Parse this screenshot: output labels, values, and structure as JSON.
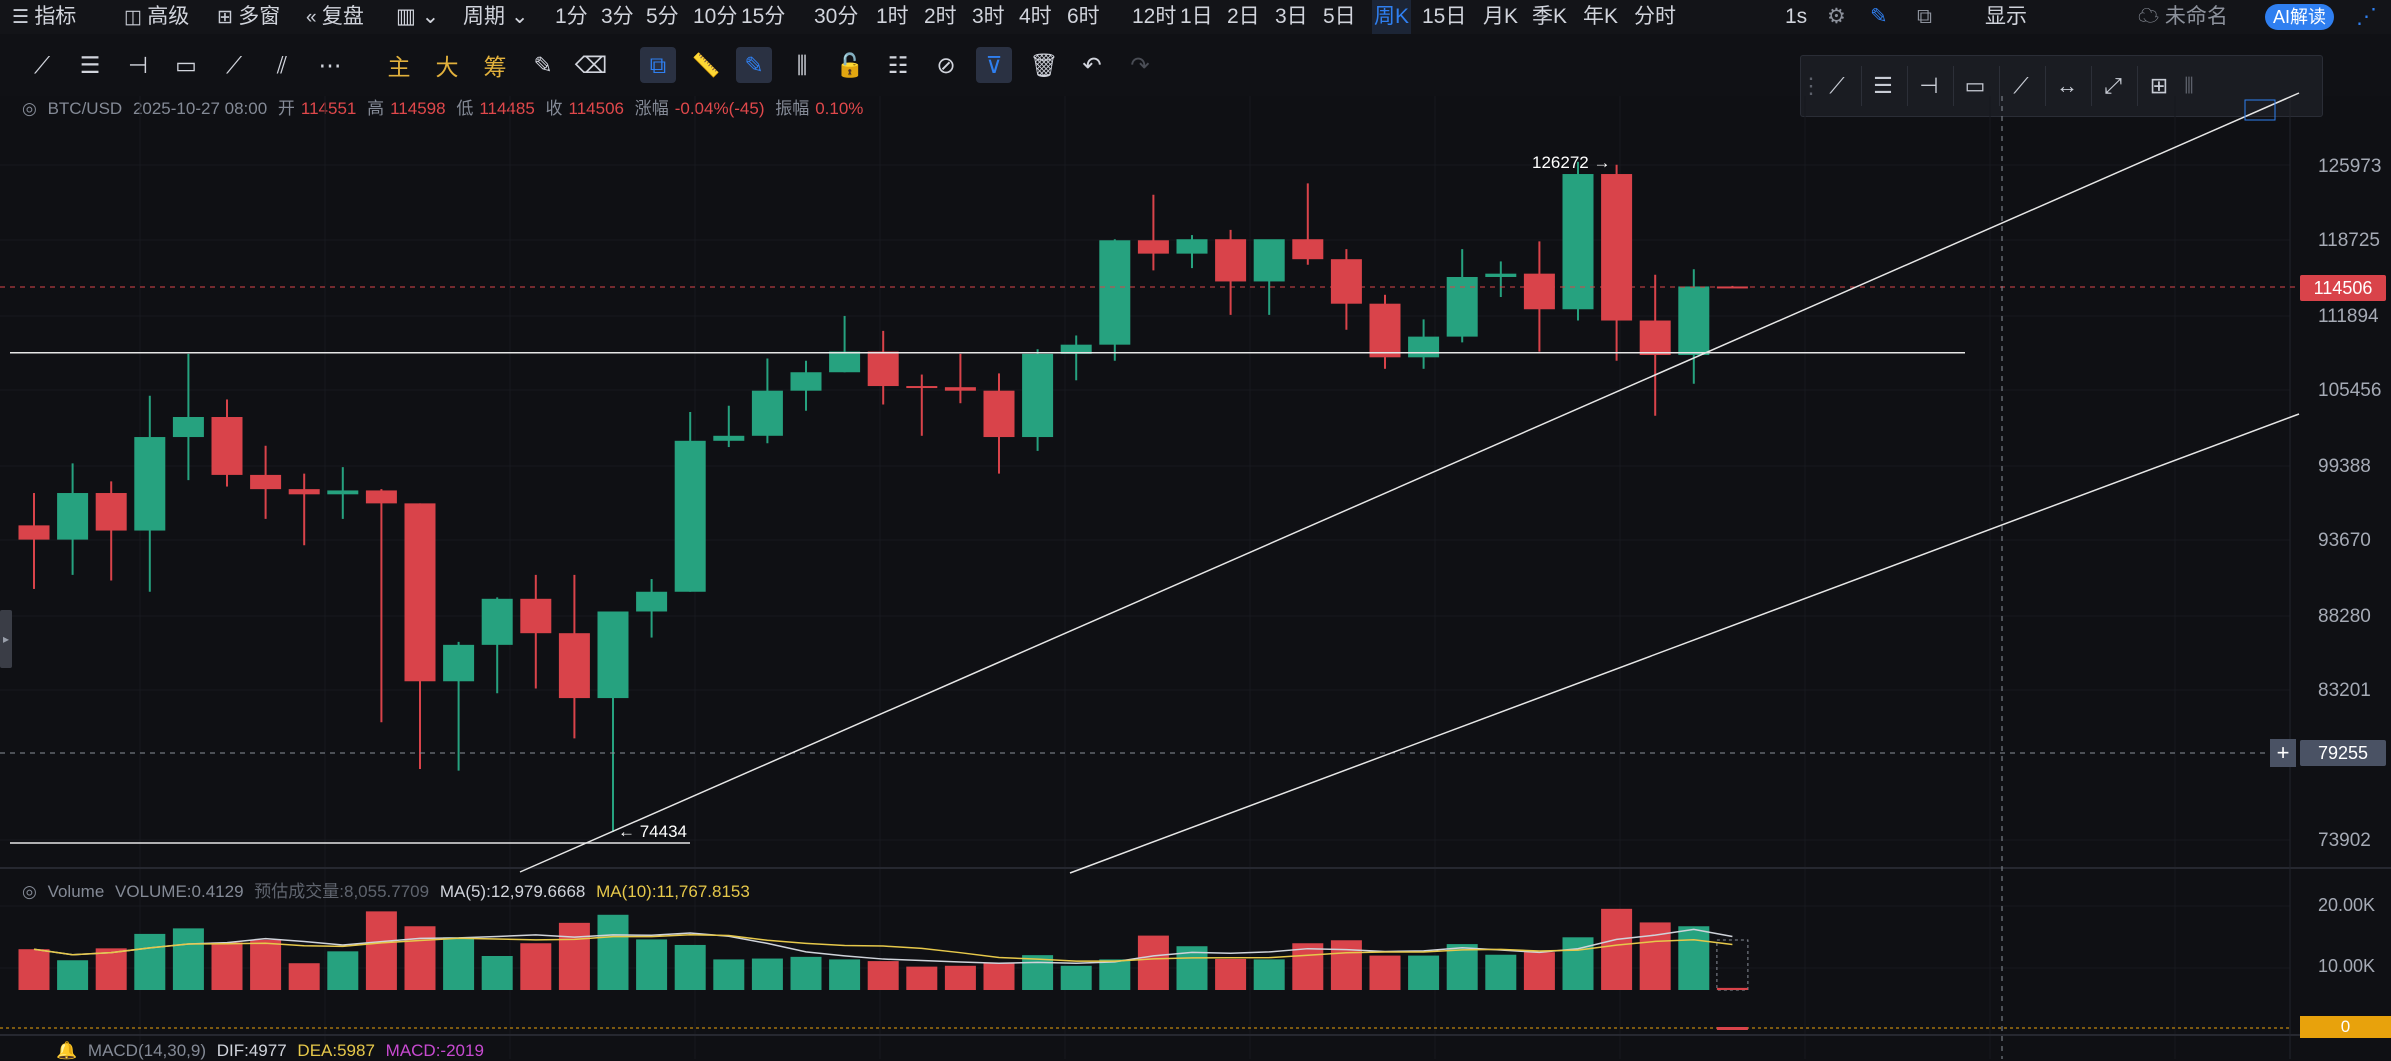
{
  "topbar": {
    "indicators_label": "指标",
    "advanced_label": "高级",
    "multiwindow_label": "多窗",
    "replay_label": "复盘",
    "period_label": "周期",
    "timeframes": [
      "1分",
      "3分",
      "5分",
      "10分",
      "15分",
      "30分",
      "1时",
      "2时",
      "3时",
      "4时",
      "6时",
      "12时",
      "1日",
      "2日",
      "3日",
      "5日",
      "周K",
      "15日",
      "月K",
      "季K",
      "年K",
      "分时"
    ],
    "selected_timeframe": "周K",
    "right_items": [
      "1s",
      "显示",
      "未命名",
      "AI解读"
    ]
  },
  "toolbar": {
    "text_tools": [
      "主",
      "大",
      "筹"
    ]
  },
  "legend": {
    "symbol": "BTC/USD",
    "date": "2025-10-27 08:00",
    "open_label": "开",
    "open": "114551",
    "high_label": "高",
    "high": "114598",
    "low_label": "低",
    "low": "114485",
    "close_label": "收",
    "close": "114506",
    "change_label": "涨幅",
    "change": "-0.04%(-45)",
    "amplitude_label": "振幅",
    "amplitude": "0.10%"
  },
  "volume_legend": {
    "name": "Volume",
    "volume": "VOLUME:0.4129",
    "estimate": "预估成交量:8,055.7709",
    "ma5": "MA(5):12,979.6668",
    "ma10": "MA(10):11,767.8153"
  },
  "macd_legend": {
    "name": "MACD(14,30,9)",
    "dif": "DIF:4977",
    "dea": "DEA:5987",
    "macd": "MACD:-2019"
  },
  "price_axis": {
    "labels": [
      "125973",
      "118725",
      "111894",
      "105456",
      "99388",
      "93670",
      "88280",
      "83201",
      "73902"
    ],
    "current_price": "114506",
    "crosshair_price": "79255"
  },
  "volume_axis": {
    "labels": [
      "20.00K",
      "10.00K"
    ],
    "macd_zero": "0"
  },
  "annotations": {
    "high_marker": "126272 →",
    "low_marker": "← 74434"
  },
  "colors": {
    "up": "#26a27f",
    "down": "#d9434a",
    "background": "#0f1014",
    "accent": "#2f7ff0",
    "ma5": "#cfd3da",
    "ma10": "#e6c84a",
    "current_tag": "#d9434a",
    "macd_tag": "#e8a20c"
  },
  "chart_data": {
    "type": "candlestick",
    "symbol": "BTC/USD",
    "interval": "weekly",
    "ohlc": [
      [
        94800,
        97300,
        90200,
        93700
      ],
      [
        93700,
        99600,
        91200,
        97300
      ],
      [
        97300,
        98200,
        90800,
        94400
      ],
      [
        94400,
        105000,
        90000,
        101700
      ],
      [
        101700,
        108600,
        98300,
        103300
      ],
      [
        103300,
        104700,
        97800,
        98700
      ],
      [
        98700,
        101000,
        95300,
        97600
      ],
      [
        97600,
        98800,
        93300,
        97200
      ],
      [
        97200,
        99300,
        95300,
        97500
      ],
      [
        97500,
        97600,
        81200,
        96500
      ],
      [
        96500,
        96500,
        78300,
        83800
      ],
      [
        83800,
        86500,
        78200,
        86300
      ],
      [
        86300,
        89600,
        83000,
        89500
      ],
      [
        89500,
        91200,
        83300,
        87100
      ],
      [
        87100,
        91200,
        80200,
        82700
      ],
      [
        82700,
        88600,
        74400,
        88600
      ],
      [
        88600,
        90900,
        86800,
        90000
      ],
      [
        90000,
        103700,
        90000,
        101400
      ],
      [
        101400,
        104200,
        100900,
        101800
      ],
      [
        101800,
        108200,
        101200,
        105400
      ],
      [
        105400,
        108000,
        103800,
        107000
      ],
      [
        107000,
        111900,
        107000,
        108800
      ],
      [
        108800,
        110600,
        104300,
        105800
      ],
      [
        105800,
        106800,
        101800,
        105700
      ],
      [
        105700,
        108600,
        104400,
        105400
      ],
      [
        105400,
        106900,
        98800,
        101700
      ],
      [
        101700,
        109000,
        100600,
        108600
      ],
      [
        108600,
        110200,
        106300,
        109400
      ],
      [
        109400,
        118800,
        108000,
        118700
      ],
      [
        118700,
        123100,
        116000,
        117500
      ],
      [
        117500,
        119200,
        116200,
        118800
      ],
      [
        118800,
        119700,
        112000,
        115000
      ],
      [
        115000,
        118700,
        112000,
        118800
      ],
      [
        118800,
        124200,
        116500,
        117000
      ],
      [
        117000,
        117900,
        110700,
        113000
      ],
      [
        113000,
        113800,
        107300,
        108300
      ],
      [
        108300,
        111600,
        107300,
        110100
      ],
      [
        110100,
        117900,
        109600,
        115400
      ],
      [
        115400,
        116800,
        113600,
        115700
      ],
      [
        115700,
        118600,
        108800,
        112500
      ],
      [
        112500,
        126272,
        111500,
        125100
      ],
      [
        125100,
        126000,
        108000,
        111500
      ],
      [
        111500,
        115600,
        103400,
        108500
      ],
      [
        108500,
        116100,
        106000,
        114551
      ],
      [
        114551,
        114598,
        114485,
        114506
      ]
    ],
    "volume_up": [
      "#26a27f"
    ],
    "volume": [
      9600,
      7000,
      9800,
      13200,
      14500,
      11200,
      11800,
      6300,
      9100,
      18500,
      15000,
      12400,
      8000,
      11000,
      15800,
      17700,
      11900,
      10600,
      7200,
      7400,
      7800,
      7200,
      6800,
      5500,
      5700,
      6300,
      8200,
      5700,
      7200,
      12800,
      10300,
      7300,
      7200,
      11000,
      11700,
      8100,
      8100,
      10800,
      8300,
      8900,
      12400,
      19100,
      15900,
      15000,
      500
    ],
    "volume_up_flags": [
      false,
      true,
      false,
      true,
      true,
      false,
      false,
      false,
      true,
      false,
      false,
      true,
      true,
      false,
      false,
      true,
      true,
      true,
      true,
      true,
      true,
      true,
      false,
      false,
      false,
      false,
      true,
      true,
      true,
      false,
      true,
      false,
      true,
      false,
      false,
      false,
      true,
      true,
      true,
      false,
      true,
      false,
      false,
      true,
      false
    ],
    "horizontal_lines": [
      108700,
      73500
    ],
    "dashed_lines": [
      114506,
      79255
    ]
  }
}
